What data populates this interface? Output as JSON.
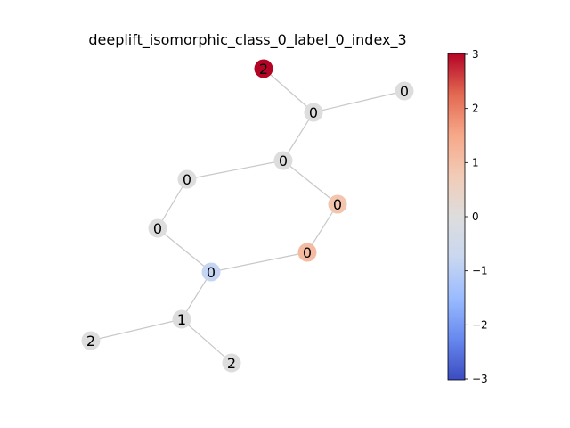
{
  "figure": {
    "title": "deeplift_isomorphic_class_0_label_0_index_3"
  },
  "graph": {
    "nodes": [
      {
        "id": "n0",
        "label": "2",
        "importance": 3.0
      },
      {
        "id": "n1",
        "label": "0",
        "importance": 0.0
      },
      {
        "id": "n2",
        "label": "0",
        "importance": 0.0
      },
      {
        "id": "n3",
        "label": "0",
        "importance": 0.0
      },
      {
        "id": "n4",
        "label": "0",
        "importance": 0.0
      },
      {
        "id": "n5",
        "label": "0",
        "importance": 0.9
      },
      {
        "id": "n6",
        "label": "0",
        "importance": 0.0
      },
      {
        "id": "n7",
        "label": "0",
        "importance": 1.1
      },
      {
        "id": "n8",
        "label": "0",
        "importance": -0.8
      },
      {
        "id": "n9",
        "label": "1",
        "importance": 0.0
      },
      {
        "id": "n10",
        "label": "2",
        "importance": 0.0
      },
      {
        "id": "n11",
        "label": "2",
        "importance": 0.0
      }
    ],
    "edges": [
      [
        "n0",
        "n1"
      ],
      [
        "n1",
        "n2"
      ],
      [
        "n1",
        "n3"
      ],
      [
        "n3",
        "n4"
      ],
      [
        "n3",
        "n5"
      ],
      [
        "n4",
        "n6"
      ],
      [
        "n5",
        "n7"
      ],
      [
        "n6",
        "n8"
      ],
      [
        "n7",
        "n8"
      ],
      [
        "n8",
        "n9"
      ],
      [
        "n9",
        "n10"
      ],
      [
        "n9",
        "n11"
      ]
    ]
  },
  "colorbar": {
    "min": -3,
    "max": 3,
    "ticks": [
      "3",
      "2",
      "1",
      "0",
      "−1",
      "−2",
      "−3"
    ],
    "colormap": "coolwarm",
    "stops": [
      "#3b4cc0",
      "#6788ee",
      "#9abbff",
      "#c9d7f0",
      "#dddddd",
      "#f2cbb7",
      "#f7a889",
      "#e26952",
      "#b40426"
    ]
  }
}
